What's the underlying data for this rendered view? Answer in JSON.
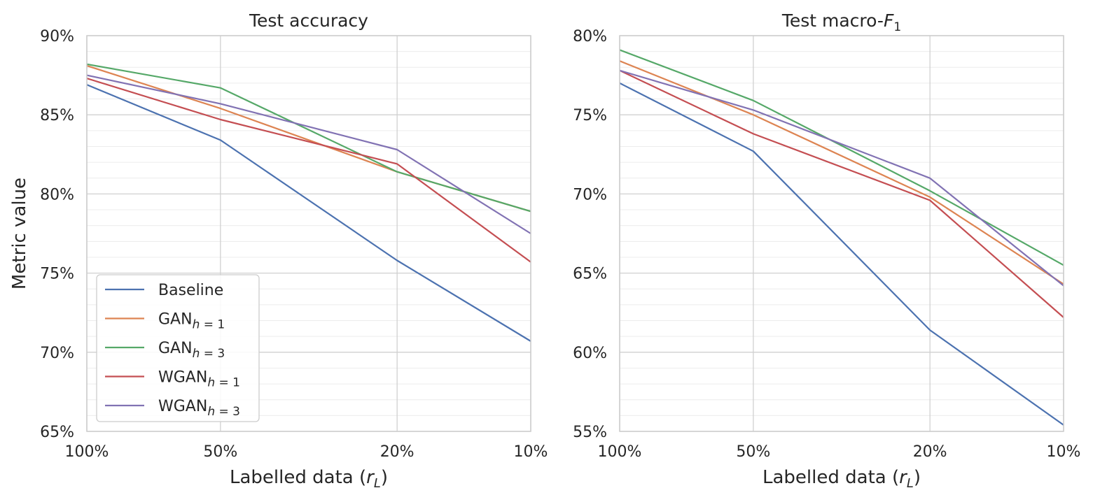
{
  "chart_data": [
    {
      "type": "line",
      "title": "Test accuracy",
      "xlabel_prefix": "Labelled data (",
      "xlabel_var": "r",
      "xlabel_sub": "L",
      "xlabel_suffix": ")",
      "ylabel": "Metric value",
      "x": [
        100,
        50,
        20,
        10
      ],
      "x_tick_labels": [
        "100%",
        "50%",
        "20%",
        "10%"
      ],
      "ylim": [
        65,
        90
      ],
      "y_ticks": [
        65,
        70,
        75,
        80,
        85,
        90
      ],
      "y_tick_labels": [
        "65%",
        "70%",
        "75%",
        "80%",
        "85%",
        "90%"
      ],
      "grid": true,
      "legend": "lower-left",
      "series": [
        {
          "name": "Baseline",
          "base": "Baseline",
          "sub": "",
          "color": "#4c72b0",
          "values": [
            86.9,
            83.4,
            75.8,
            70.7
          ]
        },
        {
          "name": "GAN h=1",
          "base": "GAN",
          "sub": "h = 1",
          "color": "#dd8452",
          "values": [
            88.1,
            85.4,
            81.4,
            78.9
          ]
        },
        {
          "name": "GAN h=3",
          "base": "GAN",
          "sub": "h = 3",
          "color": "#55a868",
          "values": [
            88.2,
            86.7,
            81.4,
            78.9
          ]
        },
        {
          "name": "WGAN h=1",
          "base": "WGAN",
          "sub": "h = 1",
          "color": "#c44e52",
          "values": [
            87.3,
            84.7,
            81.9,
            75.7
          ]
        },
        {
          "name": "WGAN h=3",
          "base": "WGAN",
          "sub": "h = 3",
          "color": "#8172b3",
          "values": [
            87.5,
            85.7,
            82.8,
            77.5
          ]
        }
      ]
    },
    {
      "type": "line",
      "title_prefix": "Test macro-",
      "title_var": "F",
      "title_sub": "1",
      "xlabel_prefix": "Labelled data (",
      "xlabel_var": "r",
      "xlabel_sub": "L",
      "xlabel_suffix": ")",
      "x": [
        100,
        50,
        20,
        10
      ],
      "x_tick_labels": [
        "100%",
        "50%",
        "20%",
        "10%"
      ],
      "ylim": [
        55,
        80
      ],
      "y_ticks": [
        55,
        60,
        65,
        70,
        75,
        80
      ],
      "y_tick_labels": [
        "55%",
        "60%",
        "65%",
        "70%",
        "75%",
        "80%"
      ],
      "grid": true,
      "series": [
        {
          "name": "Baseline",
          "color": "#4c72b0",
          "values": [
            77.0,
            72.7,
            61.4,
            55.4
          ]
        },
        {
          "name": "GAN h=1",
          "color": "#dd8452",
          "values": [
            78.4,
            75.0,
            69.8,
            64.3
          ]
        },
        {
          "name": "GAN h=3",
          "color": "#55a868",
          "values": [
            79.1,
            75.9,
            70.2,
            65.5
          ]
        },
        {
          "name": "WGAN h=1",
          "color": "#c44e52",
          "values": [
            77.8,
            73.8,
            69.6,
            62.2
          ]
        },
        {
          "name": "WGAN h=3",
          "color": "#8172b3",
          "values": [
            77.8,
            75.3,
            71.0,
            64.2
          ]
        }
      ]
    }
  ]
}
